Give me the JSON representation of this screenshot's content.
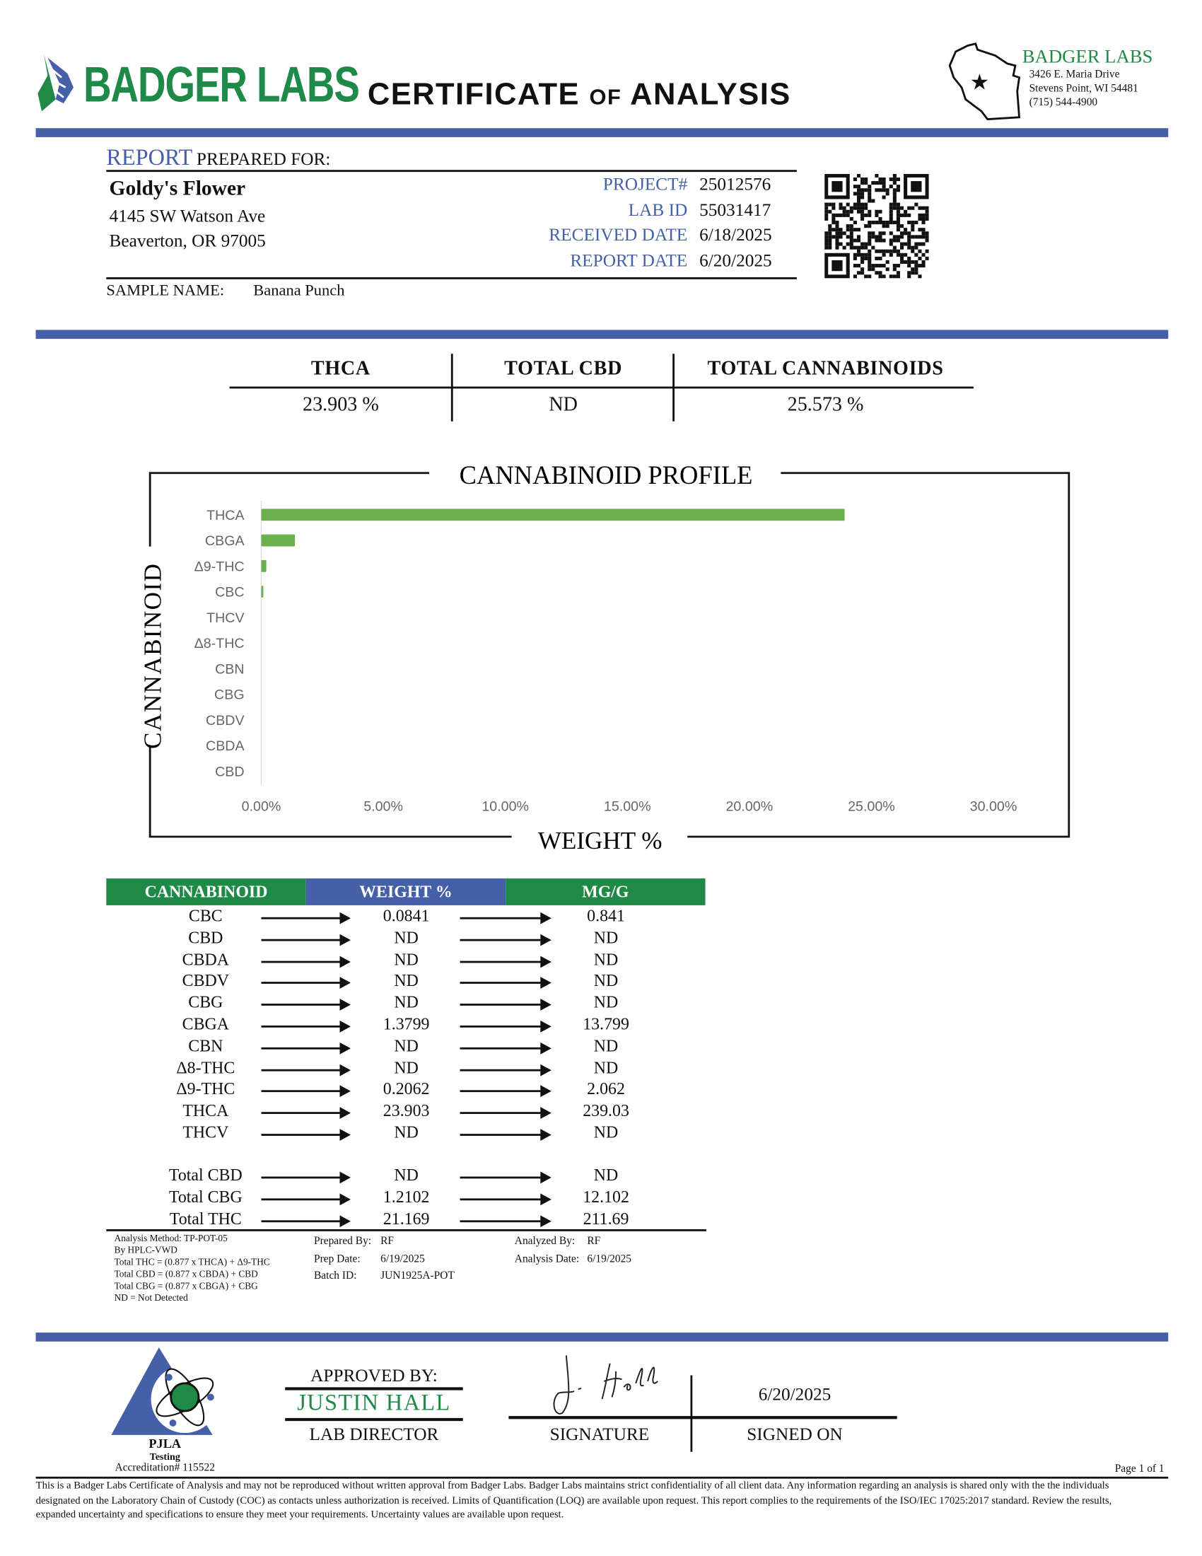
{
  "header": {
    "logo_text": "BADGER LABS",
    "title_main1": "CERTIFICATE",
    "title_of": "OF",
    "title_main2": "ANALYSIS",
    "lab_name": "BADGER LABS",
    "lab_address1": "3426 E. Maria Drive",
    "lab_address2": "Stevens Point, WI 54481",
    "lab_phone": "(715) 544-4900"
  },
  "colors": {
    "brand_green": "#1f8a47",
    "brand_blue": "#4560a8",
    "bar_green": "#6ab04c"
  },
  "report": {
    "heading_report": "REPORT",
    "heading_rest": "PREPARED FOR:",
    "client_name": "Goldy's Flower",
    "client_address1": "4145 SW Watson Ave",
    "client_address2": "Beaverton, OR 97005",
    "fields": [
      {
        "label": "PROJECT#",
        "value": "25012576"
      },
      {
        "label": "LAB ID",
        "value": "55031417"
      },
      {
        "label": "RECEIVED DATE",
        "value": "6/18/2025"
      },
      {
        "label": "REPORT DATE",
        "value": "6/20/2025"
      }
    ],
    "sample_label": "SAMPLE NAME:",
    "sample_name": "Banana Punch"
  },
  "summary": [
    {
      "label": "THCA",
      "value": "23.903 %"
    },
    {
      "label": "TOTAL CBD",
      "value": "ND"
    },
    {
      "label": "TOTAL CANNABINOIDS",
      "value": "25.573 %"
    }
  ],
  "chart_data": {
    "type": "bar",
    "orientation": "horizontal",
    "title": "CANNABINOID PROFILE",
    "xlabel": "WEIGHT %",
    "ylabel": "CANNABINOID",
    "categories": [
      "THCA",
      "CBGA",
      "Δ9-THC",
      "CBC",
      "THCV",
      "Δ8-THC",
      "CBN",
      "CBG",
      "CBDV",
      "CBDA",
      "CBD"
    ],
    "values": [
      23.903,
      1.3799,
      0.2062,
      0.0841,
      0,
      0,
      0,
      0,
      0,
      0,
      0
    ],
    "xlim": [
      0,
      30
    ],
    "xticks": [
      "0.00%",
      "5.00%",
      "10.00%",
      "15.00%",
      "20.00%",
      "25.00%",
      "30.00%"
    ],
    "grid": false,
    "color": "#6ab04c"
  },
  "results": {
    "headers": [
      "CANNABINOID",
      "WEIGHT %",
      "MG/G"
    ],
    "rows": [
      {
        "name": "CBC",
        "weight": "0.0841",
        "mgg": "0.841"
      },
      {
        "name": "CBD",
        "weight": "ND",
        "mgg": "ND"
      },
      {
        "name": "CBDA",
        "weight": "ND",
        "mgg": "ND"
      },
      {
        "name": "CBDV",
        "weight": "ND",
        "mgg": "ND"
      },
      {
        "name": "CBG",
        "weight": "ND",
        "mgg": "ND"
      },
      {
        "name": "CBGA",
        "weight": "1.3799",
        "mgg": "13.799"
      },
      {
        "name": "CBN",
        "weight": "ND",
        "mgg": "ND"
      },
      {
        "name": "Δ8-THC",
        "weight": "ND",
        "mgg": "ND"
      },
      {
        "name": "Δ9-THC",
        "weight": "0.2062",
        "mgg": "2.062"
      },
      {
        "name": "THCA",
        "weight": "23.903",
        "mgg": "239.03"
      },
      {
        "name": "THCV",
        "weight": "ND",
        "mgg": "ND"
      }
    ],
    "totals": [
      {
        "name": "Total CBD",
        "weight": "ND",
        "mgg": "ND"
      },
      {
        "name": "Total CBG",
        "weight": "1.2102",
        "mgg": "12.102"
      },
      {
        "name": "Total THC",
        "weight": "21.169",
        "mgg": "211.69"
      }
    ]
  },
  "footnotes": [
    "Analysis Method: TP-POT-05",
    "By HPLC-VWD",
    "Total THC = (0.877 x  THCA) + Δ9-THC",
    "Total CBD = (0.877 x  CBDA) + CBD",
    "Total CBG = (0.877 x  CBGA) + CBG",
    "ND = Not Detected"
  ],
  "prep": {
    "prepared_by_label": "Prepared By:",
    "prepared_by": "RF",
    "prep_date_label": "Prep Date:",
    "prep_date": "6/19/2025",
    "batch_label": "Batch ID:",
    "batch": "JUN1925A-POT",
    "analyzed_by_label": "Analyzed By:",
    "analyzed_by": "RF",
    "analysis_date_label": "Analysis Date:",
    "analysis_date": "6/19/2025"
  },
  "approval": {
    "approved_by_label": "APPROVED BY:",
    "approver_name": "JUSTIN HALL",
    "approver_title": "LAB DIRECTOR",
    "signature_label": "SIGNATURE",
    "signed_on_label": "SIGNED ON",
    "signed_date": "6/20/2025",
    "signature_text": "J. Hall"
  },
  "accreditation": {
    "logo_text1": "PJLA",
    "logo_text2": "Testing",
    "number": "Accreditation# 115522"
  },
  "footer": {
    "page": "Page 1 of 1",
    "disclaimer": "This is a Badger Labs Certificate of Analysis and may not be reproduced without written approval from Badger Labs. Badger Labs maintains strict confidentiality of all client data. Any information regarding an analysis is shared only with the the individuals designated on the Laboratory Chain of Custody (COC) as contacts unless authorization is received. Limits of Quantification (LOQ) are available upon request. This report complies to the requirements of the ISO/IEC 17025:2017 standard. Review the results, expanded uncertainty and specifications to ensure they meet your requirements. Uncertainty values are available upon request."
  }
}
